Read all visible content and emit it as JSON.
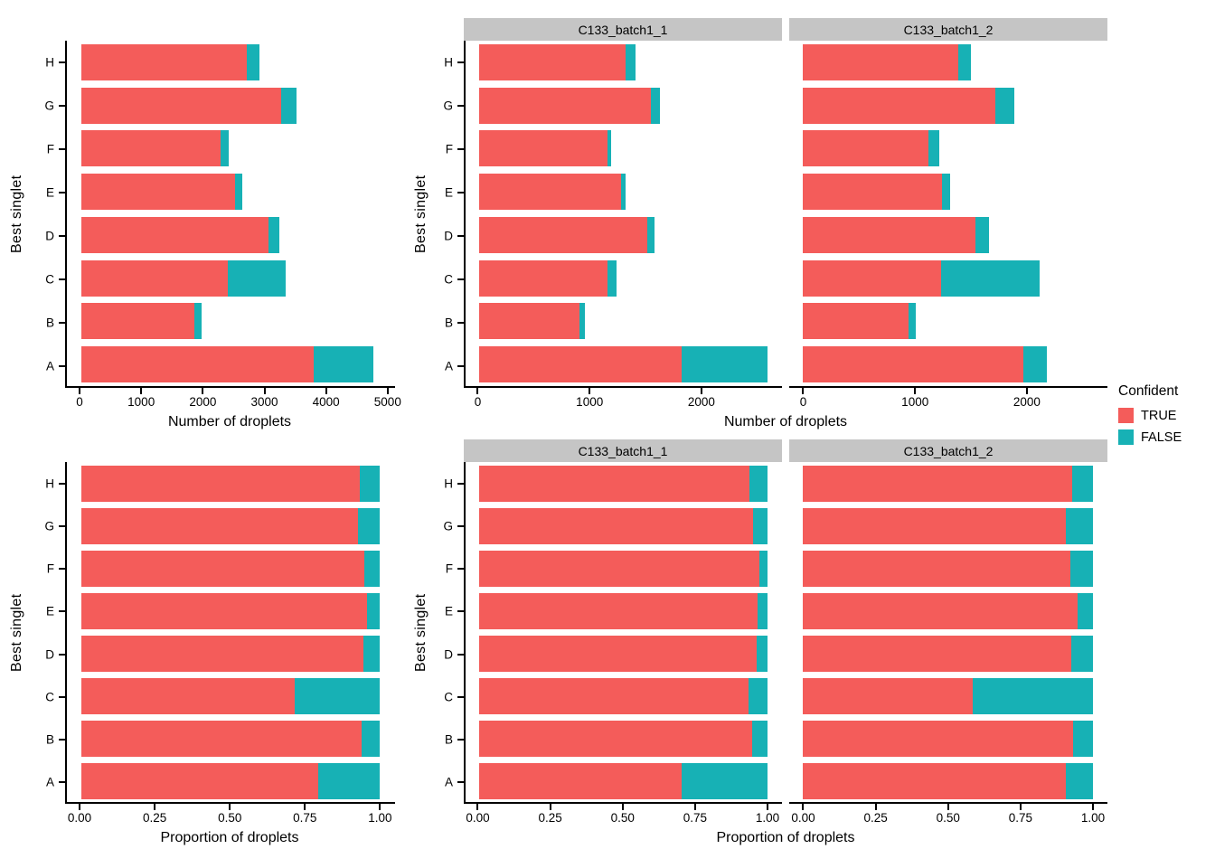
{
  "figure": {
    "background": "#FFFFFF",
    "colors": {
      "TRUE": "#F45C5A",
      "FALSE": "#17B1B5",
      "strip_bg": "#C5C5C5",
      "axis": "#000000"
    },
    "legend": {
      "title": "Confident",
      "position": "right",
      "items": [
        {
          "label": "TRUE",
          "color": "#F45C5A"
        },
        {
          "label": "FALSE",
          "color": "#17B1B5"
        }
      ]
    }
  },
  "chart_data": [
    {
      "id": "counts-overall",
      "type": "bar",
      "orientation": "horizontal",
      "stacked": true,
      "facet": "",
      "xlabel": "Number of droplets",
      "ylabel": "Best singlet",
      "categories": [
        "H",
        "G",
        "F",
        "E",
        "D",
        "C",
        "B",
        "A"
      ],
      "series": [
        {
          "name": "TRUE",
          "values": [
            2700,
            3255,
            2270,
            2510,
            3050,
            2385,
            1840,
            3785
          ]
        },
        {
          "name": "FALSE",
          "values": [
            200,
            255,
            130,
            115,
            185,
            955,
            120,
            980
          ]
        }
      ],
      "xticks": [
        0,
        1000,
        2000,
        3000,
        4000,
        5000
      ],
      "xtick_labels": [
        "0",
        "1000",
        "2000",
        "3000",
        "4000",
        "5000"
      ],
      "xlim": [
        0,
        5120
      ],
      "grid": false
    },
    {
      "id": "counts-batch1-1",
      "type": "bar",
      "orientation": "horizontal",
      "stacked": true,
      "facet": "C133_batch1_1",
      "xlabel": "Number of droplets",
      "ylabel": "Best singlet",
      "categories": [
        "H",
        "G",
        "F",
        "E",
        "D",
        "C",
        "B",
        "A"
      ],
      "series": [
        {
          "name": "TRUE",
          "values": [
            1310,
            1540,
            1150,
            1270,
            1510,
            1150,
            900,
            1815
          ]
        },
        {
          "name": "FALSE",
          "values": [
            90,
            80,
            35,
            45,
            60,
            80,
            50,
            775
          ]
        }
      ],
      "xticks": [
        0,
        1000,
        2000
      ],
      "xtick_labels": [
        "0",
        "1000",
        "2000"
      ],
      "xlim": [
        0,
        2720
      ],
      "grid": false
    },
    {
      "id": "counts-batch1-2",
      "type": "bar",
      "orientation": "horizontal",
      "stacked": true,
      "facet": "C133_batch1_2",
      "xlabel": "Number of droplets",
      "ylabel": "Best singlet",
      "categories": [
        "H",
        "G",
        "F",
        "E",
        "D",
        "C",
        "B",
        "A"
      ],
      "series": [
        {
          "name": "TRUE",
          "values": [
            1390,
            1715,
            1120,
            1240,
            1540,
            1235,
            940,
            1970
          ]
        },
        {
          "name": "FALSE",
          "values": [
            110,
            175,
            95,
            70,
            125,
            875,
            70,
            205
          ]
        }
      ],
      "xticks": [
        0,
        1000,
        2000
      ],
      "xtick_labels": [
        "0",
        "1000",
        "2000"
      ],
      "xlim": [
        0,
        2720
      ],
      "grid": false
    },
    {
      "id": "proportions-overall",
      "type": "bar",
      "orientation": "horizontal",
      "stacked": true,
      "facet": "",
      "xlabel": "Proportion of droplets",
      "ylabel": "Best singlet",
      "categories": [
        "H",
        "G",
        "F",
        "E",
        "D",
        "C",
        "B",
        "A"
      ],
      "series": [
        {
          "name": "TRUE",
          "values": [
            0.931,
            0.927,
            0.946,
            0.956,
            0.943,
            0.714,
            0.939,
            0.794
          ]
        },
        {
          "name": "FALSE",
          "values": [
            0.069,
            0.073,
            0.054,
            0.044,
            0.057,
            0.286,
            0.061,
            0.206
          ]
        }
      ],
      "xticks": [
        0,
        0.25,
        0.5,
        0.75,
        1.0
      ],
      "xtick_labels": [
        "0.00",
        "0.25",
        "0.50",
        "0.75",
        "1.00"
      ],
      "xlim": [
        0,
        1.05
      ],
      "grid": false
    },
    {
      "id": "proportions-batch1-1",
      "type": "bar",
      "orientation": "horizontal",
      "stacked": true,
      "facet": "C133_batch1_1",
      "xlabel": "Proportion of droplets",
      "ylabel": "Best singlet",
      "categories": [
        "H",
        "G",
        "F",
        "E",
        "D",
        "C",
        "B",
        "A"
      ],
      "series": [
        {
          "name": "TRUE",
          "values": [
            0.936,
            0.951,
            0.97,
            0.966,
            0.962,
            0.935,
            0.947,
            0.701
          ]
        },
        {
          "name": "FALSE",
          "values": [
            0.064,
            0.049,
            0.03,
            0.034,
            0.038,
            0.065,
            0.053,
            0.299
          ]
        }
      ],
      "xticks": [
        0,
        0.25,
        0.5,
        0.75,
        1.0
      ],
      "xtick_labels": [
        "0.00",
        "0.25",
        "0.50",
        "0.75",
        "1.00"
      ],
      "xlim": [
        0,
        1.05
      ],
      "grid": false
    },
    {
      "id": "proportions-batch1-2",
      "type": "bar",
      "orientation": "horizontal",
      "stacked": true,
      "facet": "C133_batch1_2",
      "xlabel": "Proportion of droplets",
      "ylabel": "Best singlet",
      "categories": [
        "H",
        "G",
        "F",
        "E",
        "D",
        "C",
        "B",
        "A"
      ],
      "series": [
        {
          "name": "TRUE",
          "values": [
            0.927,
            0.907,
            0.922,
            0.947,
            0.925,
            0.585,
            0.931,
            0.906
          ]
        },
        {
          "name": "FALSE",
          "values": [
            0.073,
            0.093,
            0.078,
            0.053,
            0.075,
            0.415,
            0.069,
            0.094
          ]
        }
      ],
      "xticks": [
        0,
        0.25,
        0.5,
        0.75,
        1.0
      ],
      "xtick_labels": [
        "0.00",
        "0.25",
        "0.50",
        "0.75",
        "1.00"
      ],
      "xlim": [
        0,
        1.05
      ],
      "grid": false
    }
  ]
}
